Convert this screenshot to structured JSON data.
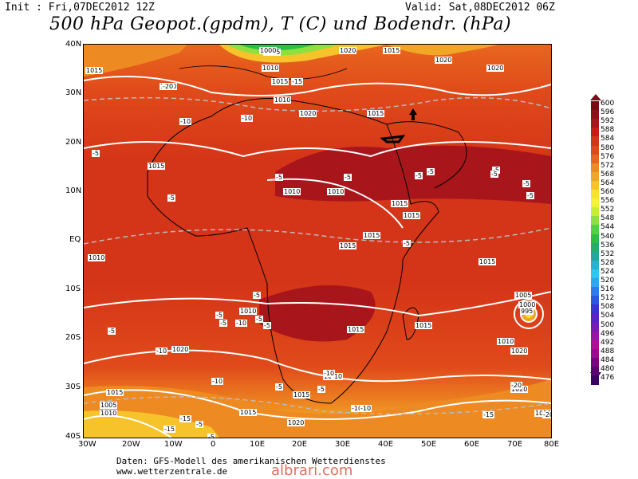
{
  "header": {
    "init": "Init : Fri,07DEC2012 12Z",
    "valid": "Valid: Sat,08DEC2012 06Z",
    "title": "500 hPa Geopot.(gpdm), T (C) und Bodendr. (hPa)"
  },
  "axes": {
    "lat_labels": [
      "40N",
      "30N",
      "20N",
      "10N",
      "EQ",
      "10S",
      "20S",
      "30S",
      "40S"
    ],
    "lon_labels": [
      "30W",
      "20W",
      "10W",
      "0",
      "10E",
      "20E",
      "30E",
      "40E",
      "50E",
      "60E",
      "70E",
      "80E"
    ]
  },
  "footer": {
    "source_line1": "Daten: GFS-Modell des amerikanischen Wetterdienstes",
    "source_line2": "www.wetterzentrale.de",
    "watermark": "albrari.com"
  },
  "colorbar": {
    "values": [
      "600",
      "596",
      "592",
      "588",
      "584",
      "580",
      "576",
      "572",
      "568",
      "564",
      "560",
      "556",
      "552",
      "548",
      "544",
      "540",
      "536",
      "532",
      "528",
      "524",
      "520",
      "516",
      "512",
      "508",
      "504",
      "500",
      "496",
      "492",
      "488",
      "484",
      "480",
      "476"
    ],
    "colors": [
      "#7a0a14",
      "#8e1018",
      "#a8161c",
      "#c42018",
      "#d43418",
      "#e04a1a",
      "#e8661e",
      "#ee8a22",
      "#f2a626",
      "#f6c42a",
      "#fae032",
      "#f4f040",
      "#c8ec3a",
      "#8ee040",
      "#4ed244",
      "#2ac044",
      "#20b06a",
      "#20a8a0",
      "#22b4d0",
      "#28c8f0",
      "#2aa8f4",
      "#2a7cf0",
      "#2c56e6",
      "#3a34d8",
      "#5a22c8",
      "#7a1ab8",
      "#9a14a8",
      "#b40c98",
      "#a00890",
      "#7c0480",
      "#5a0270",
      "#3c0060"
    ]
  },
  "map": {
    "pressure_labels": [
      "1015",
      "1020",
      "1010",
      "1015",
      "1015",
      "1020",
      "1010",
      "1010",
      "1015",
      "1015",
      "1015",
      "1015",
      "1010",
      "1005",
      "1000",
      "1015",
      "1020",
      "1015",
      "1020",
      "1010",
      "1010",
      "1015",
      "1020",
      "1015",
      "1005",
      "1000",
      "995",
      "1020",
      "1015",
      "1005",
      "1010",
      "1015",
      "1010",
      "1020",
      "1015",
      "1010",
      "1020",
      "1020",
      "1010",
      "1015"
    ],
    "temp_labels": [
      "-20",
      "-15",
      "-10",
      "-10",
      "-5",
      "-5",
      "-5",
      "-5",
      "-5",
      "-5",
      "-5",
      "-5",
      "-5",
      "-10",
      "-10",
      "-10",
      "-15",
      "-20",
      "-20",
      "-15",
      "-5",
      "-5",
      "-5",
      "-5",
      "-5",
      "-10",
      "-10",
      "-5",
      "-5",
      "-5",
      "-5",
      "-10",
      "-15",
      "-10",
      "-5",
      "-5",
      "-5"
    ]
  }
}
